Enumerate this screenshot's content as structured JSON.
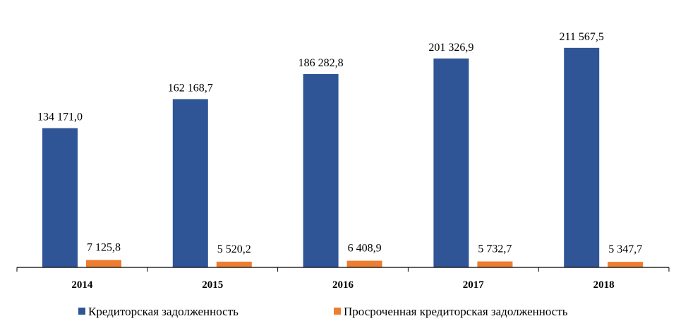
{
  "chart_data": {
    "type": "bar",
    "categories": [
      "2014",
      "2015",
      "2016",
      "2017",
      "2018"
    ],
    "series": [
      {
        "name": "Кредиторская задолженность",
        "color": "#2F5597",
        "values": [
          134171.0,
          162168.7,
          186282.8,
          201326.9,
          211567.5
        ],
        "labels": [
          "134 171,0",
          "162 168,7",
          "186 282,8",
          "201 326,9",
          "211 567,5"
        ]
      },
      {
        "name": "Просроченная кредиторская задолженность",
        "color": "#ED7D31",
        "values": [
          7125.8,
          5520.2,
          6408.9,
          5732.7,
          5347.7
        ],
        "labels": [
          "7 125,8",
          "5 520,2",
          "6 408,9",
          "5 732,7",
          "5 347,7"
        ]
      }
    ],
    "ylim": [
      0,
      240000
    ],
    "grid": false,
    "legend_position": "bottom"
  }
}
